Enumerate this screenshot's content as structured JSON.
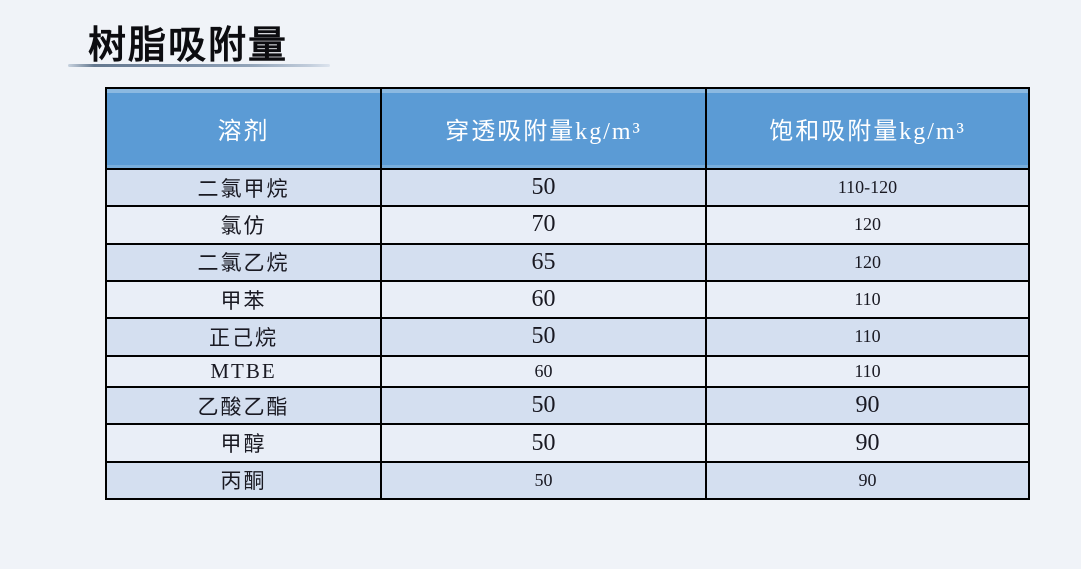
{
  "title": {
    "text": "树脂吸附量"
  },
  "table": {
    "headers": [
      {
        "label": "溶剂"
      },
      {
        "label": "穿透吸附量kg/m³"
      },
      {
        "label": "饱和吸附量kg/m³"
      }
    ],
    "rows": [
      {
        "solvent": "二氯甲烷",
        "penetration": "50",
        "saturation": "110-120"
      },
      {
        "solvent": "氯仿",
        "penetration": "70",
        "saturation": "120"
      },
      {
        "solvent": "二氯乙烷",
        "penetration": "65",
        "saturation": "120"
      },
      {
        "solvent": "甲苯",
        "penetration": "60",
        "saturation": "110"
      },
      {
        "solvent": "正己烷",
        "penetration": "50",
        "saturation": "110"
      },
      {
        "solvent": "MTBE",
        "penetration": "60",
        "saturation": "110"
      },
      {
        "solvent": "乙酸乙酯",
        "penetration": "50",
        "saturation": "90"
      },
      {
        "solvent": "甲醇",
        "penetration": "50",
        "saturation": "90"
      },
      {
        "solvent": "丙酮",
        "penetration": "50",
        "saturation": "90"
      }
    ]
  },
  "colors": {
    "page_background": "#F0F3F8",
    "header_bg": "#5B9BD5",
    "header_text": "#FFFFFF",
    "row_odd_bg": "#D4DFF0",
    "row_even_bg": "#E9EEF7",
    "border": "#000000",
    "title_text": "#0C0C10"
  }
}
